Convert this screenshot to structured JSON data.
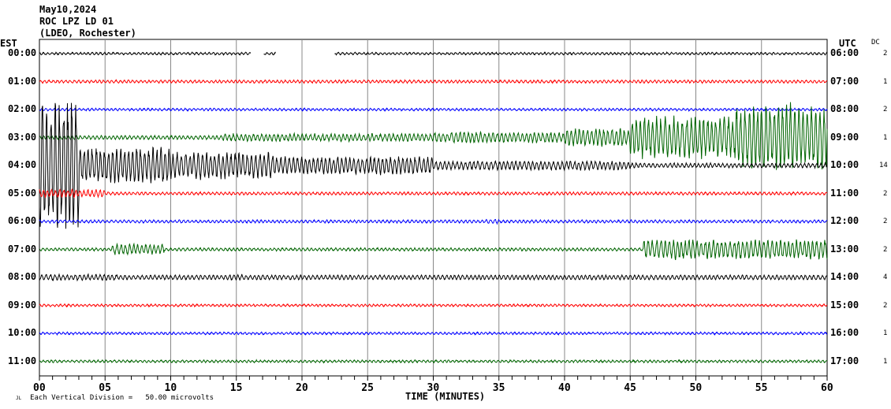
{
  "header": {
    "date": "May10,2024",
    "station": "ROC LPZ LD 01",
    "network": "(LDEO, Rochester)"
  },
  "left_axis_title": "EST",
  "right_axis_title": "UTC",
  "dc_title": "DC",
  "footer": {
    "mark": "JL",
    "scale": "Each Vertical Division =   50.00 microvolts"
  },
  "chart_data": {
    "type": "line",
    "title": "ROC LPZ LD 01 helicorder May10,2024",
    "xlabel": "TIME (MINUTES)",
    "xlim": [
      0,
      60
    ],
    "x_ticks": [
      "00",
      "05",
      "10",
      "15",
      "20",
      "25",
      "30",
      "35",
      "40",
      "45",
      "50",
      "55",
      "60"
    ],
    "grid": true,
    "rows": [
      {
        "est": "00:00",
        "utc": "06:00",
        "dc": "2",
        "color": "#000000",
        "base": 1.2,
        "gaps": [
          [
            16.1,
            17.1
          ],
          [
            18.0,
            22.5
          ]
        ],
        "events": []
      },
      {
        "est": "01:00",
        "utc": "07:00",
        "dc": "1",
        "color": "#ff0000",
        "base": 1.5,
        "gaps": [],
        "events": []
      },
      {
        "est": "02:00",
        "utc": "08:00",
        "dc": "2",
        "color": "#0000ff",
        "base": 1.2,
        "gaps": [],
        "events": []
      },
      {
        "est": "03:00",
        "utc": "09:00",
        "dc": "1",
        "color": "#006400",
        "base": 2,
        "gaps": [],
        "events": [
          [
            14,
            30,
            5
          ],
          [
            30,
            40,
            7
          ],
          [
            40,
            45,
            12
          ],
          [
            45,
            53,
            28
          ],
          [
            53,
            60,
            45
          ]
        ]
      },
      {
        "est": "04:00",
        "utc": "10:00",
        "dc": "14",
        "color": "#000000",
        "base": 2,
        "gaps": [],
        "events": [
          [
            0,
            3,
            90
          ],
          [
            3,
            10,
            25
          ],
          [
            10,
            18,
            18
          ],
          [
            18,
            30,
            12
          ],
          [
            30,
            45,
            6
          ],
          [
            45,
            60,
            3
          ]
        ]
      },
      {
        "est": "05:00",
        "utc": "11:00",
        "dc": "2",
        "color": "#ff0000",
        "base": 1.5,
        "gaps": [],
        "events": [
          [
            0,
            5,
            5
          ]
        ]
      },
      {
        "est": "06:00",
        "utc": "12:00",
        "dc": "2",
        "color": "#0000ff",
        "base": 1.5,
        "gaps": [],
        "events": [
          [
            34,
            35,
            3
          ]
        ]
      },
      {
        "est": "07:00",
        "utc": "13:00",
        "dc": "2",
        "color": "#006400",
        "base": 1.5,
        "gaps": [],
        "events": [
          [
            5.5,
            9.5,
            7
          ],
          [
            46,
            60,
            13
          ]
        ]
      },
      {
        "est": "08:00",
        "utc": "14:00",
        "dc": "4",
        "color": "#000000",
        "base": 2.5,
        "gaps": [],
        "events": [
          [
            0,
            6,
            4
          ],
          [
            14.5,
            15.5,
            4
          ]
        ]
      },
      {
        "est": "09:00",
        "utc": "15:00",
        "dc": "2",
        "color": "#ff0000",
        "base": 1.2,
        "gaps": [],
        "events": []
      },
      {
        "est": "10:00",
        "utc": "16:00",
        "dc": "1",
        "color": "#0000ff",
        "base": 1.2,
        "gaps": [],
        "events": []
      },
      {
        "est": "11:00",
        "utc": "17:00",
        "dc": "1",
        "color": "#006400",
        "base": 1.2,
        "gaps": [],
        "events": []
      }
    ]
  }
}
